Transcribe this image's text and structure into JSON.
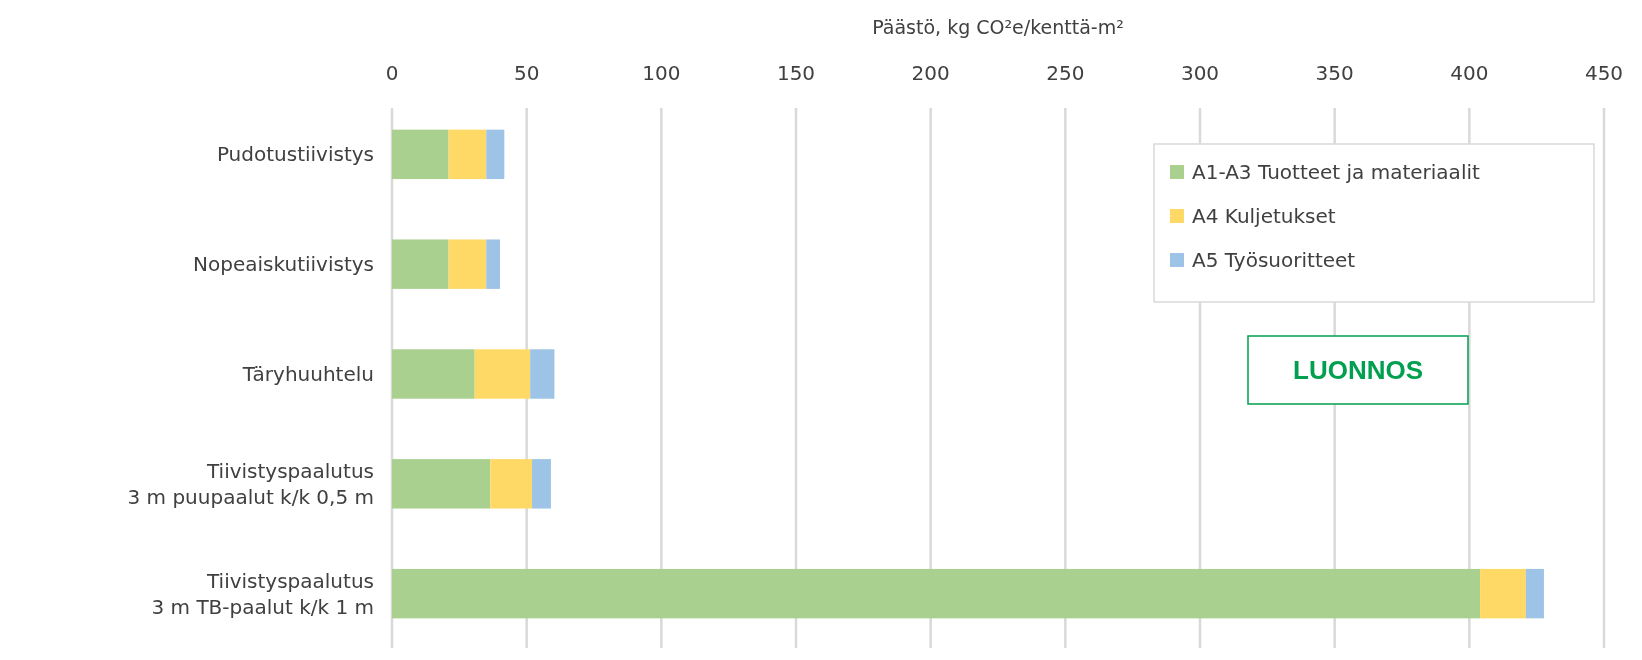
{
  "chart_data": {
    "type": "bar",
    "orientation": "horizontal",
    "stacked": true,
    "xlabel": "Päästö, kg CO²e/kenttä-m²",
    "categories": [
      "Pudotustiivistys",
      "Nopeaiskutiivistys",
      "Täryhuuhtelu",
      "Tiivistyspaalutus\n3 m puupaalut k/k 0,5 m",
      "Tiivistyspaalutus\n3 m TB-paalut k/k 1 m"
    ],
    "series": [
      {
        "name": "A1-A3 Tuotteet ja materiaalit",
        "color": "#a9d08e",
        "values": [
          21,
          21,
          30.7,
          36.5,
          404
        ]
      },
      {
        "name": "A4 Kuljetukset",
        "color": "#ffd966",
        "values": [
          14,
          14,
          20.6,
          15.5,
          17
        ]
      },
      {
        "name": "A5 Työsuoritteet",
        "color": "#9dc3e6",
        "values": [
          6.7,
          5.1,
          9,
          7,
          6.7
        ]
      }
    ],
    "xlim": [
      0,
      450
    ],
    "xticks": [
      0,
      50,
      100,
      150,
      200,
      250,
      300,
      350,
      400,
      450
    ],
    "grid": "x",
    "legend": "top right",
    "annotations": [
      "LUONNOS"
    ]
  }
}
